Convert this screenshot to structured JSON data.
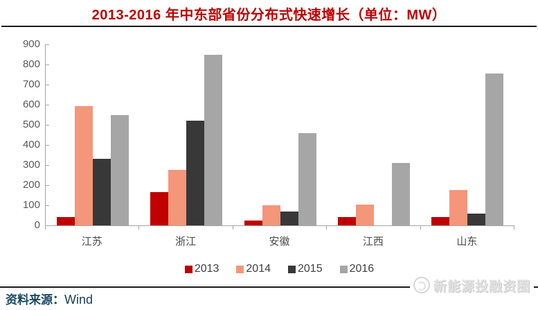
{
  "title": "2013-2016 年中东部省份分布式快速增长（单位：MW）",
  "source": {
    "label": "资料来源：",
    "value": "Wind"
  },
  "watermark": {
    "icon": "circle-logo-icon",
    "text": "新能源投融资圈"
  },
  "colors": {
    "title": "#c00000",
    "rule": "#1a1a1a",
    "axis": "#a6a6a6",
    "tick_label": "#595959",
    "category_label": "#4a4a4a",
    "legend_label": "#404040",
    "source_text": "#1b4a5f",
    "watermark_text": "#e3e3e3"
  },
  "chart_data": {
    "type": "bar",
    "title": "2013-2016 年中东部省份分布式快速增长（单位：MW）",
    "unit": "MW",
    "categories": [
      "江苏",
      "浙江",
      "安徽",
      "江西",
      "山东"
    ],
    "series": [
      {
        "name": "2013",
        "color": "#c00000",
        "values": [
          40,
          165,
          25,
          40,
          40
        ]
      },
      {
        "name": "2014",
        "color": "#f4967a",
        "values": [
          595,
          275,
          100,
          105,
          175
        ]
      },
      {
        "name": "2015",
        "color": "#383838",
        "values": [
          330,
          520,
          70,
          0,
          60
        ]
      },
      {
        "name": "2016",
        "color": "#a6a6a6",
        "values": [
          550,
          850,
          460,
          310,
          755
        ]
      }
    ],
    "xlabel": "",
    "ylabel": "",
    "ylim": [
      0,
      900
    ],
    "yticks": [
      0,
      100,
      200,
      300,
      400,
      500,
      600,
      700,
      800,
      900
    ],
    "grid": false,
    "legend_position": "bottom"
  }
}
